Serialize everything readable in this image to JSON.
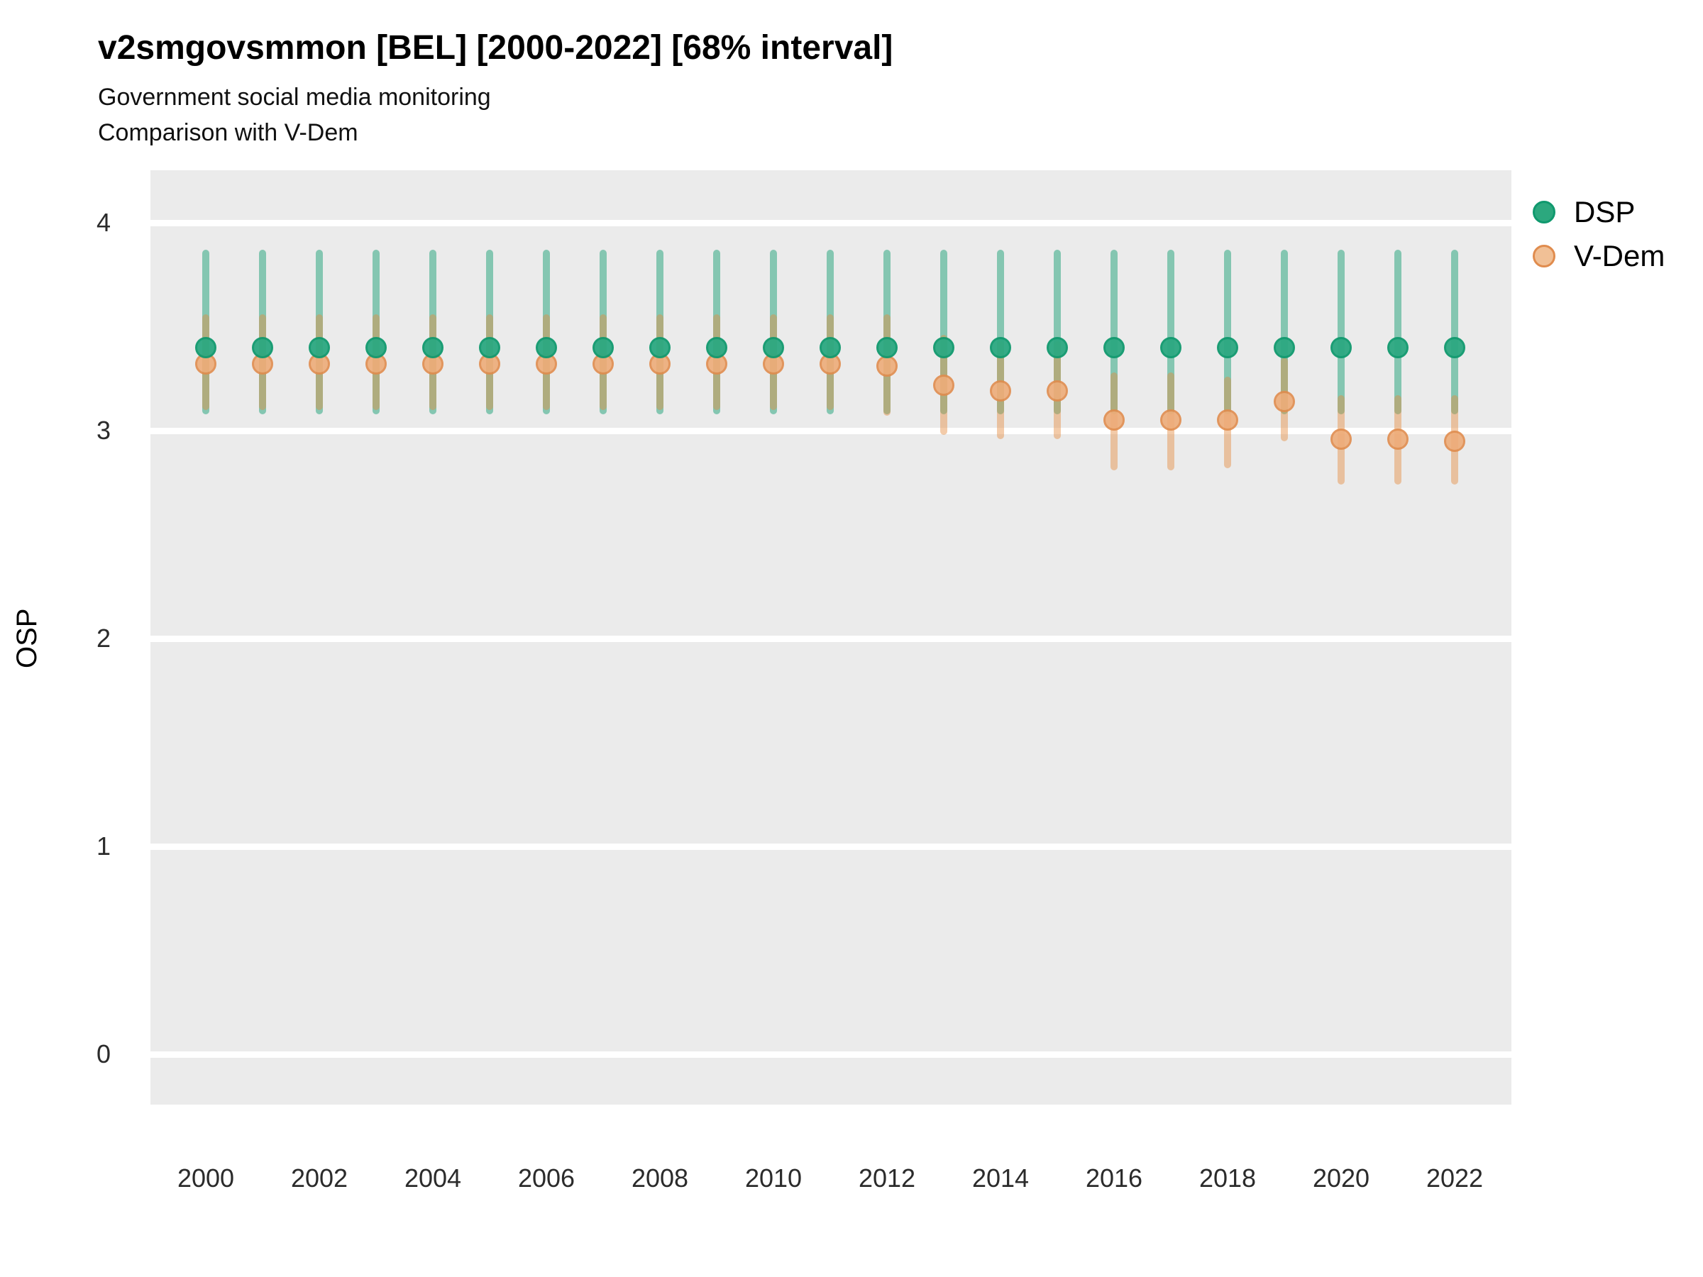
{
  "header": {
    "title": "v2smgovsmmon [BEL] [2000-2022] [68% interval]",
    "subtitle_line1": "Government social media monitoring",
    "subtitle_line2": "Comparison with V-Dem"
  },
  "colors": {
    "panel_background": "#EBEBEB",
    "gridline": "#FFFFFF",
    "dsp_point_fill": "#2CA881",
    "dsp_point_stroke": "#10996E",
    "dsp_bar": "rgba(30,162,120,0.5)",
    "vdem_point_fill": "#EEAC79",
    "vdem_point_stroke": "#E08C4E",
    "vdem_bar": "rgba(228,140,64,0.45)",
    "legend_dsp_fill": "#2CA87E",
    "legend_vdem_fill": "#F1C096"
  },
  "chart_data": {
    "type": "pointrange-scatter",
    "title": "v2smgovsmmon [BEL] [2000-2022] [68% interval]",
    "subtitle": [
      "Government social media monitoring",
      "Comparison with V-Dem"
    ],
    "xlabel": "",
    "ylabel": "OSP",
    "interval": "68%",
    "x_ticks": [
      2000,
      2002,
      2004,
      2006,
      2008,
      2010,
      2012,
      2014,
      2016,
      2018,
      2020,
      2022
    ],
    "y_ticks": [
      0,
      1,
      2,
      3,
      4
    ],
    "ylim": [
      -0.24,
      4.25
    ],
    "xlim": [
      1999,
      2023
    ],
    "grid": "major-horizontal-only",
    "legend_position": "right-top",
    "legend": [
      "DSP",
      "V-Dem"
    ],
    "series": [
      {
        "name": "DSP",
        "points": [
          {
            "year": 2000,
            "est": 3.4,
            "lo": 3.08,
            "hi": 3.87
          },
          {
            "year": 2001,
            "est": 3.4,
            "lo": 3.08,
            "hi": 3.87
          },
          {
            "year": 2002,
            "est": 3.4,
            "lo": 3.08,
            "hi": 3.87
          },
          {
            "year": 2003,
            "est": 3.4,
            "lo": 3.08,
            "hi": 3.87
          },
          {
            "year": 2004,
            "est": 3.4,
            "lo": 3.08,
            "hi": 3.87
          },
          {
            "year": 2005,
            "est": 3.4,
            "lo": 3.08,
            "hi": 3.87
          },
          {
            "year": 2006,
            "est": 3.4,
            "lo": 3.08,
            "hi": 3.87
          },
          {
            "year": 2007,
            "est": 3.4,
            "lo": 3.08,
            "hi": 3.87
          },
          {
            "year": 2008,
            "est": 3.4,
            "lo": 3.08,
            "hi": 3.87
          },
          {
            "year": 2009,
            "est": 3.4,
            "lo": 3.08,
            "hi": 3.87
          },
          {
            "year": 2010,
            "est": 3.4,
            "lo": 3.08,
            "hi": 3.87
          },
          {
            "year": 2011,
            "est": 3.4,
            "lo": 3.08,
            "hi": 3.87
          },
          {
            "year": 2012,
            "est": 3.4,
            "lo": 3.08,
            "hi": 3.87
          },
          {
            "year": 2013,
            "est": 3.4,
            "lo": 3.08,
            "hi": 3.87
          },
          {
            "year": 2014,
            "est": 3.4,
            "lo": 3.08,
            "hi": 3.87
          },
          {
            "year": 2015,
            "est": 3.4,
            "lo": 3.08,
            "hi": 3.87
          },
          {
            "year": 2016,
            "est": 3.4,
            "lo": 3.08,
            "hi": 3.87
          },
          {
            "year": 2017,
            "est": 3.4,
            "lo": 3.08,
            "hi": 3.87
          },
          {
            "year": 2018,
            "est": 3.4,
            "lo": 3.08,
            "hi": 3.87
          },
          {
            "year": 2019,
            "est": 3.4,
            "lo": 3.08,
            "hi": 3.87
          },
          {
            "year": 2020,
            "est": 3.4,
            "lo": 3.08,
            "hi": 3.87
          },
          {
            "year": 2021,
            "est": 3.4,
            "lo": 3.08,
            "hi": 3.87
          },
          {
            "year": 2022,
            "est": 3.4,
            "lo": 3.08,
            "hi": 3.87
          }
        ]
      },
      {
        "name": "V-Dem",
        "points": [
          {
            "year": 2000,
            "est": 3.32,
            "lo": 3.1,
            "hi": 3.56
          },
          {
            "year": 2001,
            "est": 3.32,
            "lo": 3.1,
            "hi": 3.56
          },
          {
            "year": 2002,
            "est": 3.32,
            "lo": 3.1,
            "hi": 3.56
          },
          {
            "year": 2003,
            "est": 3.32,
            "lo": 3.1,
            "hi": 3.56
          },
          {
            "year": 2004,
            "est": 3.32,
            "lo": 3.1,
            "hi": 3.56
          },
          {
            "year": 2005,
            "est": 3.32,
            "lo": 3.1,
            "hi": 3.56
          },
          {
            "year": 2006,
            "est": 3.32,
            "lo": 3.1,
            "hi": 3.56
          },
          {
            "year": 2007,
            "est": 3.32,
            "lo": 3.1,
            "hi": 3.56
          },
          {
            "year": 2008,
            "est": 3.32,
            "lo": 3.1,
            "hi": 3.56
          },
          {
            "year": 2009,
            "est": 3.32,
            "lo": 3.1,
            "hi": 3.56
          },
          {
            "year": 2010,
            "est": 3.32,
            "lo": 3.1,
            "hi": 3.56
          },
          {
            "year": 2011,
            "est": 3.32,
            "lo": 3.1,
            "hi": 3.56
          },
          {
            "year": 2012,
            "est": 3.31,
            "lo": 3.07,
            "hi": 3.56
          },
          {
            "year": 2013,
            "est": 3.22,
            "lo": 2.98,
            "hi": 3.46
          },
          {
            "year": 2014,
            "est": 3.19,
            "lo": 2.96,
            "hi": 3.43
          },
          {
            "year": 2015,
            "est": 3.19,
            "lo": 2.96,
            "hi": 3.43
          },
          {
            "year": 2016,
            "est": 3.05,
            "lo": 2.81,
            "hi": 3.28
          },
          {
            "year": 2017,
            "est": 3.05,
            "lo": 2.81,
            "hi": 3.28
          },
          {
            "year": 2018,
            "est": 3.05,
            "lo": 2.82,
            "hi": 3.26
          },
          {
            "year": 2019,
            "est": 3.14,
            "lo": 2.95,
            "hi": 3.35
          },
          {
            "year": 2020,
            "est": 2.96,
            "lo": 2.74,
            "hi": 3.17
          },
          {
            "year": 2021,
            "est": 2.96,
            "lo": 2.74,
            "hi": 3.17
          },
          {
            "year": 2022,
            "est": 2.95,
            "lo": 2.74,
            "hi": 3.17
          }
        ]
      }
    ]
  },
  "legend": {
    "dsp_label": "DSP",
    "vdem_label": "V-Dem"
  },
  "y_axis": {
    "title": "OSP"
  }
}
